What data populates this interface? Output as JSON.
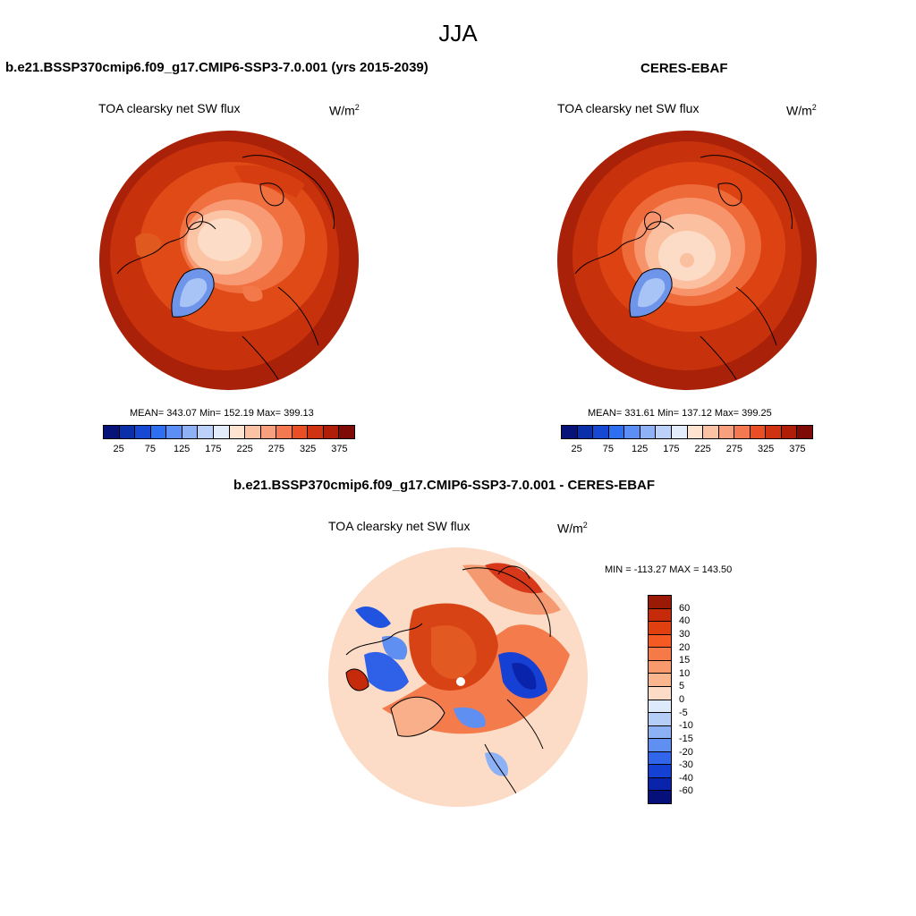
{
  "title": "JJA",
  "panels": [
    {
      "title": "b.e21.BSSP370cmip6.f09_g17.CMIP6-SSP3-7.0.001 (yrs 2015-2039)",
      "variable": "TOA clearsky net SW flux",
      "units_base": "W/m",
      "units_exp": "2",
      "stats": "MEAN= 343.07  Min= 152.19  Max= 399.13"
    },
    {
      "title": "CERES-EBAF",
      "variable": "TOA clearsky net SW flux",
      "units_base": "W/m",
      "units_exp": "2",
      "stats": "MEAN= 331.61  Min= 137.12  Max= 399.25"
    },
    {
      "title": "b.e21.BSSP370cmip6.f09_g17.CMIP6-SSP3-7.0.001 - CERES-EBAF",
      "variable": "TOA clearsky net SW flux",
      "units_base": "W/m",
      "units_exp": "2",
      "stats": "MIN = -113.27 MAX = 143.50"
    }
  ],
  "abs_colorbar": {
    "labels": [
      "25",
      "75",
      "125",
      "175",
      "225",
      "275",
      "325",
      "375"
    ],
    "colors": [
      "#08137a",
      "#0b2fa8",
      "#1648d4",
      "#2e6ef0",
      "#5b8ff5",
      "#8fb2f7",
      "#bcd1f9",
      "#e3ecfb",
      "#fde3d0",
      "#fbc3a4",
      "#f8a07e",
      "#f47850",
      "#ea4e24",
      "#d03312",
      "#b01e0a",
      "#7e0b05"
    ]
  },
  "diff_colorbar": {
    "labels": [
      "60",
      "40",
      "30",
      "20",
      "15",
      "10",
      "5",
      "0",
      "-5",
      "-10",
      "-15",
      "-20",
      "-30",
      "-40",
      "-60"
    ],
    "colors": [
      "#9a1a05",
      "#c52a0a",
      "#e0400f",
      "#f45a22",
      "#f67a48",
      "#f89a6c",
      "#fab58f",
      "#fcdcc6",
      "#ddeafb",
      "#b5cef8",
      "#8cb1f5",
      "#5f8ff1",
      "#3166eb",
      "#1540d4",
      "#0a23ab",
      "#05107a"
    ]
  }
}
